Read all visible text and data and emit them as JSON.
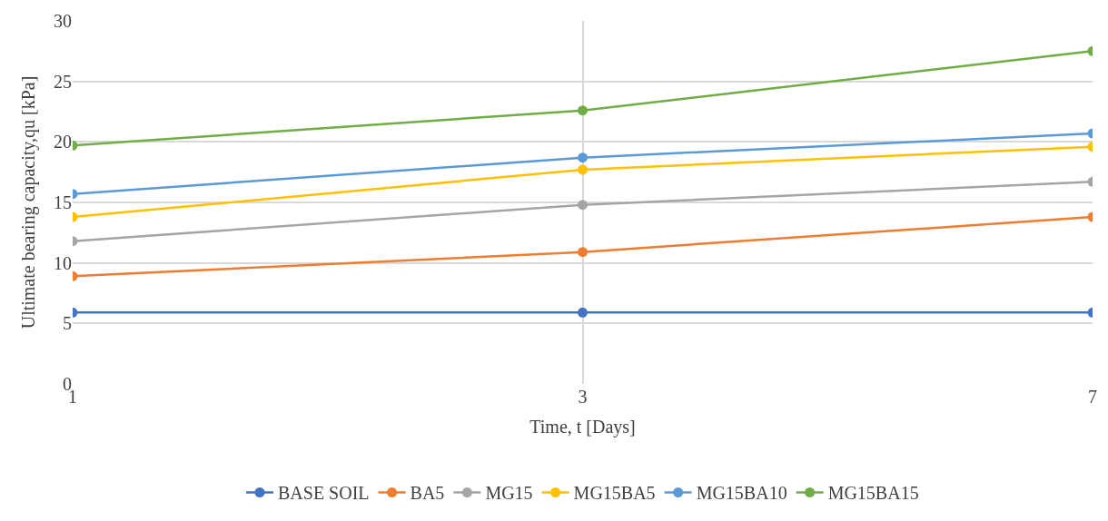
{
  "chart_data": {
    "type": "line",
    "xlabel": "Time, t [Days]",
    "ylabel": "Ultimate bearing capacity,qu [kPa]",
    "categories": [
      "1",
      "3",
      "7"
    ],
    "series": [
      {
        "name": "BASE SOIL",
        "color": "#4472c4",
        "values": [
          5.9,
          5.9,
          5.9
        ]
      },
      {
        "name": "BA5",
        "color": "#ed7d31",
        "values": [
          8.9,
          10.9,
          13.8
        ]
      },
      {
        "name": "MG15",
        "color": "#a5a5a5",
        "values": [
          11.8,
          14.8,
          16.7
        ]
      },
      {
        "name": "MG15BA5",
        "color": "#ffc000",
        "values": [
          13.8,
          17.7,
          19.6
        ]
      },
      {
        "name": "MG15BA10",
        "color": "#5b9bd5",
        "values": [
          15.7,
          18.7,
          20.7
        ]
      },
      {
        "name": "MG15BA15",
        "color": "#70ad47",
        "values": [
          19.7,
          22.6,
          27.5
        ]
      }
    ],
    "ylim": [
      0,
      30
    ],
    "yticks": [
      0,
      5,
      10,
      15,
      20,
      25,
      30
    ],
    "grid": true,
    "legend": "bottom",
    "marker": "circle",
    "line_style": "solid"
  }
}
